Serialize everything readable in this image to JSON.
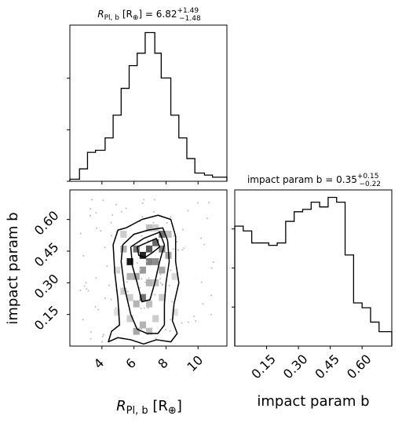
{
  "chart_data": [
    {
      "panel": "top-left",
      "type": "histogram",
      "title": "R_{Pl,b} [R_⊕] = 6.82 +1.49 / −1.48",
      "title_parts": {
        "name": "R",
        "sub": "Pl, b",
        "unit": "[R",
        "unit_sub": "⊕",
        "unit_close": "]",
        "eq": "= 6.82",
        "sup": "+1.49",
        "sub2": "−1.48"
      },
      "xlim": [
        2.0,
        11.8
      ],
      "bin_edges": [
        2.0,
        2.6,
        3.1,
        3.6,
        4.2,
        4.7,
        5.2,
        5.7,
        6.2,
        6.7,
        7.3,
        7.7,
        8.3,
        8.8,
        9.3,
        9.8,
        10.4,
        10.9,
        11.8
      ],
      "counts": [
        1,
        6,
        14,
        15,
        21,
        32,
        45,
        56,
        62,
        72,
        62,
        50,
        32,
        21,
        11,
        4,
        3,
        2
      ]
    },
    {
      "panel": "bottom-left",
      "type": "2d-histogram-contour",
      "xlabel": "R_{Pl,b} [R_⊕]",
      "xlabel_parts": {
        "name": "R",
        "sub": "Pl, b",
        "unit": "[R",
        "unit_sub": "⊕",
        "unit_close": "]"
      },
      "ylabel": "impact param b",
      "xlim": [
        2.0,
        11.8
      ],
      "ylim": [
        0.0,
        0.74
      ],
      "xticks": [
        "4",
        "6",
        "8",
        "10"
      ],
      "yticks": [
        "0.15",
        "0.30",
        "0.45",
        "0.60"
      ],
      "dense_cells": [
        {
          "x": 6.55,
          "y": 0.43,
          "shade": 0.85
        },
        {
          "x": 6.95,
          "y": 0.46,
          "shade": 0.65
        },
        {
          "x": 7.35,
          "y": 0.49,
          "shade": 0.6
        },
        {
          "x": 7.75,
          "y": 0.53,
          "shade": 0.55
        },
        {
          "x": 7.75,
          "y": 0.46,
          "shade": 0.5
        },
        {
          "x": 5.75,
          "y": 0.4,
          "shade": 0.9
        },
        {
          "x": 6.15,
          "y": 0.46,
          "shade": 0.55
        },
        {
          "x": 6.95,
          "y": 0.4,
          "shade": 0.5
        },
        {
          "x": 6.55,
          "y": 0.36,
          "shade": 0.4
        },
        {
          "x": 7.35,
          "y": 0.4,
          "shade": 0.45
        },
        {
          "x": 6.15,
          "y": 0.33,
          "shade": 0.35
        },
        {
          "x": 6.55,
          "y": 0.23,
          "shade": 0.55
        },
        {
          "x": 5.75,
          "y": 0.33,
          "shade": 0.3
        },
        {
          "x": 7.75,
          "y": 0.36,
          "shade": 0.35
        },
        {
          "x": 6.95,
          "y": 0.3,
          "shade": 0.3
        },
        {
          "x": 7.35,
          "y": 0.3,
          "shade": 0.25
        },
        {
          "x": 5.35,
          "y": 0.46,
          "shade": 0.3
        },
        {
          "x": 8.15,
          "y": 0.43,
          "shade": 0.35
        },
        {
          "x": 5.35,
          "y": 0.26,
          "shade": 0.2
        },
        {
          "x": 6.15,
          "y": 0.2,
          "shade": 0.3
        },
        {
          "x": 6.95,
          "y": 0.2,
          "shade": 0.25
        },
        {
          "x": 7.75,
          "y": 0.23,
          "shade": 0.2
        },
        {
          "x": 5.75,
          "y": 0.13,
          "shade": 0.2
        },
        {
          "x": 6.55,
          "y": 0.1,
          "shade": 0.3
        },
        {
          "x": 6.15,
          "y": 0.07,
          "shade": 0.35
        },
        {
          "x": 6.95,
          "y": 0.07,
          "shade": 0.25
        },
        {
          "x": 7.35,
          "y": 0.13,
          "shade": 0.2
        },
        {
          "x": 5.35,
          "y": 0.53,
          "shade": 0.2
        },
        {
          "x": 4.95,
          "y": 0.36,
          "shade": 0.15
        },
        {
          "x": 8.55,
          "y": 0.33,
          "shade": 0.15
        },
        {
          "x": 6.95,
          "y": 0.56,
          "shade": 0.25
        },
        {
          "x": 7.35,
          "y": 0.56,
          "shade": 0.2
        },
        {
          "x": 8.15,
          "y": 0.53,
          "shade": 0.25
        },
        {
          "x": 5.75,
          "y": 0.23,
          "shade": 0.2
        },
        {
          "x": 4.95,
          "y": 0.16,
          "shade": 0.12
        },
        {
          "x": 8.55,
          "y": 0.16,
          "shade": 0.12
        }
      ],
      "contours": [
        [
          [
            5.5,
            0.56
          ],
          [
            6.5,
            0.6
          ],
          [
            7.5,
            0.62
          ],
          [
            8.3,
            0.6
          ],
          [
            8.6,
            0.52
          ],
          [
            8.6,
            0.4
          ],
          [
            8.8,
            0.3
          ],
          [
            8.5,
            0.2
          ],
          [
            8.4,
            0.12
          ],
          [
            8.7,
            0.06
          ],
          [
            8.3,
            0.02
          ],
          [
            7.4,
            0.03
          ],
          [
            6.6,
            0.01
          ],
          [
            5.8,
            0.03
          ],
          [
            5.0,
            0.04
          ],
          [
            4.4,
            0.02
          ],
          [
            4.6,
            0.07
          ],
          [
            5.1,
            0.1
          ],
          [
            5.0,
            0.22
          ],
          [
            4.8,
            0.35
          ],
          [
            4.7,
            0.48
          ],
          [
            5.0,
            0.55
          ],
          [
            5.5,
            0.56
          ]
        ],
        [
          [
            5.3,
            0.48
          ],
          [
            6.0,
            0.53
          ],
          [
            6.9,
            0.55
          ],
          [
            7.8,
            0.56
          ],
          [
            8.1,
            0.5
          ],
          [
            8.2,
            0.4
          ],
          [
            8.0,
            0.3
          ],
          [
            7.9,
            0.2
          ],
          [
            7.9,
            0.1
          ],
          [
            7.5,
            0.06
          ],
          [
            6.8,
            0.06
          ],
          [
            6.2,
            0.08
          ],
          [
            5.8,
            0.15
          ],
          [
            5.4,
            0.28
          ],
          [
            5.2,
            0.4
          ],
          [
            5.3,
            0.48
          ]
        ],
        [
          [
            5.8,
            0.47
          ],
          [
            6.6,
            0.51
          ],
          [
            7.6,
            0.54
          ],
          [
            7.9,
            0.48
          ],
          [
            7.6,
            0.4
          ],
          [
            7.3,
            0.3
          ],
          [
            7.0,
            0.22
          ],
          [
            6.5,
            0.21
          ],
          [
            6.2,
            0.3
          ],
          [
            5.9,
            0.38
          ],
          [
            5.8,
            0.47
          ]
        ],
        [
          [
            6.2,
            0.47
          ],
          [
            6.8,
            0.49
          ],
          [
            7.4,
            0.51
          ],
          [
            7.6,
            0.47
          ],
          [
            7.1,
            0.44
          ],
          [
            6.7,
            0.42
          ],
          [
            6.3,
            0.43
          ],
          [
            6.2,
            0.47
          ]
        ]
      ]
    },
    {
      "panel": "bottom-right",
      "type": "histogram",
      "title": "impact param b = 0.35 +0.15 / −0.22",
      "title_parts": {
        "name": "impact param b",
        "eq": "= 0.35",
        "sup": "+0.15",
        "sub2": "−0.22"
      },
      "xlabel": "impact param b",
      "xlim": [
        0.0,
        0.74
      ],
      "xticks": [
        "0.15",
        "0.30",
        "0.45",
        "0.60"
      ],
      "bin_edges": [
        0.0,
        0.04,
        0.08,
        0.12,
        0.16,
        0.2,
        0.24,
        0.28,
        0.32,
        0.36,
        0.4,
        0.44,
        0.48,
        0.52,
        0.56,
        0.6,
        0.64,
        0.68,
        0.74
      ],
      "counts": [
        50,
        48,
        43,
        43,
        42,
        43,
        52,
        56,
        57,
        60,
        58,
        62,
        60,
        38,
        18,
        16,
        10,
        6
      ]
    }
  ],
  "colors": {
    "line": "#000000",
    "background": "#ffffff"
  }
}
